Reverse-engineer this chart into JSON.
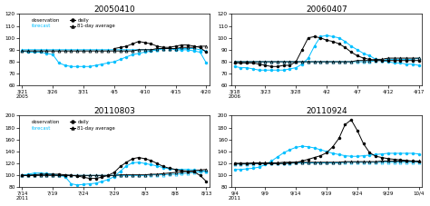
{
  "panels": [
    {
      "title": "20050410",
      "ylim": [
        60,
        120
      ],
      "yticks": [
        60,
        70,
        80,
        90,
        100,
        110,
        120
      ],
      "xtick_labels": [
        "3/21\n2005",
        "3/26",
        "3/31",
        "4/5",
        "4/10",
        "4/15",
        "4/20"
      ],
      "n_points": 31,
      "obs_daily": [
        null,
        null,
        null,
        null,
        null,
        null,
        null,
        null,
        null,
        null,
        null,
        null,
        null,
        null,
        null,
        91,
        92,
        93,
        95,
        97,
        96,
        95,
        93,
        92,
        92,
        93,
        94,
        94,
        93,
        92,
        88
      ],
      "obs_81": [
        89,
        89,
        89,
        89,
        89,
        89,
        89,
        89,
        89,
        89,
        89,
        89,
        89,
        89,
        89,
        89,
        89,
        89,
        89,
        90,
        90,
        90,
        91,
        91,
        91,
        91,
        92,
        92,
        92,
        93,
        93
      ],
      "fc_daily": [
        89,
        88,
        88,
        88,
        87,
        86,
        79,
        77,
        76,
        76,
        76,
        76,
        77,
        78,
        79,
        80,
        82,
        84,
        86,
        87,
        88,
        89,
        90,
        91,
        91,
        90,
        90,
        90,
        89,
        88,
        79
      ],
      "fc_81": [
        90,
        90,
        90,
        90,
        90,
        90,
        90,
        90,
        90,
        90,
        90,
        90,
        90,
        90,
        90,
        90,
        90,
        90,
        90,
        90,
        90,
        90,
        90,
        91,
        91,
        91,
        91,
        91,
        91,
        90,
        89
      ],
      "show_legend": true
    },
    {
      "title": "20060407",
      "ylim": [
        60,
        120
      ],
      "yticks": [
        60,
        70,
        80,
        90,
        100,
        110,
        120
      ],
      "xtick_labels": [
        "3/18\n2006",
        "3/23",
        "3/28",
        "4/2",
        "4/7",
        "4/12",
        "4/17"
      ],
      "n_points": 31,
      "obs_daily": [
        79,
        79,
        79,
        79,
        78,
        77,
        76,
        76,
        77,
        77,
        80,
        90,
        100,
        101,
        100,
        98,
        97,
        95,
        92,
        88,
        85,
        83,
        82,
        81,
        81,
        81,
        81,
        81,
        81,
        81,
        81
      ],
      "obs_81": [
        80,
        80,
        80,
        80,
        80,
        80,
        80,
        80,
        80,
        80,
        80,
        80,
        80,
        80,
        80,
        80,
        80,
        80,
        80,
        80,
        81,
        81,
        81,
        82,
        82,
        83,
        83,
        83,
        83,
        83,
        83
      ],
      "fc_daily": [
        76,
        75,
        75,
        74,
        73,
        73,
        73,
        73,
        73,
        74,
        75,
        78,
        83,
        93,
        101,
        102,
        101,
        100,
        97,
        93,
        90,
        87,
        85,
        82,
        81,
        80,
        79,
        79,
        78,
        78,
        77
      ],
      "fc_81": [
        80,
        80,
        80,
        80,
        80,
        80,
        80,
        80,
        80,
        80,
        80,
        80,
        80,
        80,
        80,
        80,
        80,
        80,
        80,
        80,
        80,
        80,
        80,
        81,
        81,
        82,
        82,
        82,
        82,
        82,
        83
      ],
      "show_legend": false
    },
    {
      "title": "20110803",
      "ylim": [
        80,
        200
      ],
      "yticks": [
        80,
        100,
        120,
        140,
        160,
        180,
        200
      ],
      "xtick_labels": [
        "7/14\n2011",
        "7/19",
        "7/24",
        "7/29",
        "8/3",
        "8/8",
        "8/13"
      ],
      "n_points": 31,
      "obs_daily": [
        100,
        100,
        101,
        102,
        102,
        102,
        102,
        101,
        100,
        99,
        97,
        95,
        95,
        97,
        100,
        105,
        115,
        122,
        128,
        130,
        128,
        125,
        120,
        115,
        112,
        110,
        108,
        107,
        106,
        100,
        90
      ],
      "obs_81": [
        100,
        100,
        100,
        100,
        100,
        100,
        100,
        100,
        100,
        100,
        100,
        100,
        100,
        100,
        100,
        100,
        101,
        101,
        101,
        101,
        101,
        102,
        102,
        103,
        104,
        105,
        106,
        107,
        108,
        109,
        110
      ],
      "fc_daily": [
        100,
        102,
        104,
        104,
        103,
        102,
        100,
        98,
        86,
        84,
        85,
        86,
        87,
        90,
        93,
        98,
        107,
        116,
        121,
        122,
        120,
        118,
        116,
        113,
        111,
        110,
        110,
        110,
        109,
        108,
        107
      ],
      "fc_81": [
        101,
        101,
        101,
        101,
        101,
        101,
        100,
        100,
        100,
        100,
        100,
        100,
        100,
        100,
        100,
        100,
        100,
        100,
        100,
        100,
        100,
        101,
        101,
        101,
        102,
        102,
        103,
        104,
        105,
        106,
        107
      ],
      "show_legend": true
    },
    {
      "title": "20110924",
      "ylim": [
        80,
        200
      ],
      "yticks": [
        80,
        100,
        120,
        140,
        160,
        180,
        200
      ],
      "xtick_labels": [
        "9/4\n2011",
        "9/9",
        "9/14",
        "9/19",
        "9/24",
        "9/29",
        "10/4"
      ],
      "n_points": 31,
      "obs_daily": [
        120,
        120,
        120,
        120,
        120,
        120,
        120,
        120,
        120,
        121,
        122,
        124,
        127,
        130,
        133,
        138,
        148,
        162,
        185,
        193,
        175,
        153,
        138,
        132,
        130,
        128,
        127,
        126,
        125,
        124,
        123
      ],
      "obs_81": [
        120,
        120,
        120,
        121,
        121,
        121,
        121,
        121,
        122,
        122,
        122,
        122,
        122,
        122,
        122,
        122,
        122,
        122,
        123,
        123,
        123,
        123,
        123,
        123,
        124,
        124,
        124,
        124,
        124,
        124,
        124
      ],
      "fc_daily": [
        110,
        110,
        111,
        112,
        114,
        118,
        124,
        131,
        138,
        143,
        147,
        149,
        148,
        146,
        143,
        140,
        137,
        135,
        133,
        132,
        132,
        133,
        134,
        135,
        136,
        137,
        137,
        137,
        137,
        137,
        136
      ],
      "fc_81": [
        119,
        119,
        119,
        119,
        120,
        120,
        120,
        120,
        120,
        120,
        121,
        121,
        121,
        121,
        121,
        121,
        121,
        121,
        122,
        122,
        122,
        122,
        122,
        122,
        122,
        122,
        122,
        122,
        122,
        122,
        122
      ],
      "show_legend": false
    }
  ],
  "obs_color": "#000000",
  "fc_color": "#00bfff",
  "lw": 0.7,
  "ms": 2.2
}
